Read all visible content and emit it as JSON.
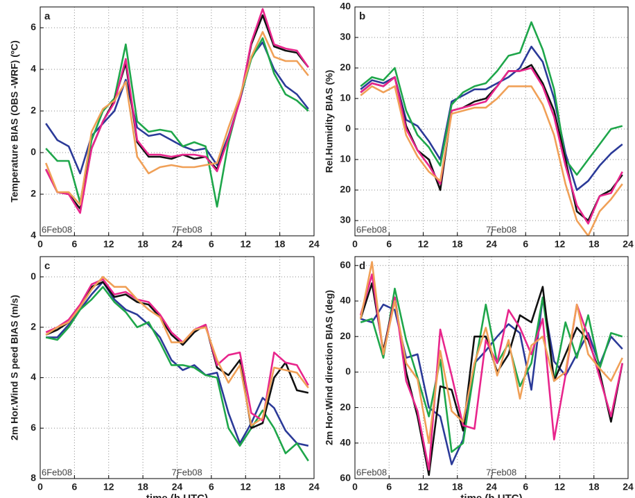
{
  "chart_data": [
    {
      "type": "line",
      "label": "a",
      "ylabel": "Temperature  BIAS  (OBS -WRF) (ºC)",
      "annotations": [
        "6Feb08",
        "7Feb08"
      ],
      "x": [
        1,
        3,
        5,
        7,
        9,
        11,
        13,
        15,
        17,
        19,
        21,
        23,
        25,
        27,
        29,
        31,
        33,
        35,
        37,
        39,
        41,
        43,
        45,
        47
      ],
      "xlim": [
        0,
        48
      ],
      "xticks": [
        0,
        6,
        12,
        18,
        24,
        {
          "value": 30,
          "label": "6"
        },
        {
          "value": 36,
          "label": "12"
        },
        {
          "value": 42,
          "label": "18"
        },
        {
          "value": 48,
          "label": "24"
        }
      ],
      "ylim": [
        -4,
        7
      ],
      "yticks": [
        {
          "value": -4,
          "label": "4"
        },
        {
          "value": -2,
          "label": "2"
        },
        0,
        2,
        4,
        6
      ],
      "grid": true,
      "series": [
        {
          "color": "#2b3a98",
          "values": [
            1.4,
            0.6,
            0.3,
            -1.0,
            0.8,
            1.4,
            2.0,
            3.5,
            1.2,
            0.8,
            0.9,
            0.6,
            0.3,
            0.1,
            0.2,
            -0.6,
            0.8,
            2.5,
            4.6,
            5.3,
            4.0,
            3.2,
            2.8,
            2.1
          ]
        },
        {
          "color": "#1ea64a",
          "values": [
            0.2,
            -0.4,
            -0.4,
            -2.4,
            0.6,
            2.0,
            2.6,
            5.2,
            1.5,
            1.0,
            1.1,
            1.0,
            0.3,
            0.5,
            0.3,
            -2.6,
            0.5,
            2.6,
            4.5,
            5.5,
            3.8,
            2.8,
            2.5,
            2.0
          ]
        },
        {
          "color": "#111111",
          "values": [
            -0.8,
            -1.9,
            -2.0,
            -2.7,
            0.2,
            1.5,
            2.5,
            4.3,
            0.5,
            -0.2,
            -0.2,
            -0.3,
            -0.1,
            -0.3,
            -0.2,
            -0.8,
            0.7,
            2.5,
            5.2,
            6.6,
            5.1,
            4.9,
            4.8,
            4.1
          ]
        },
        {
          "color": "#e8258c",
          "values": [
            -0.8,
            -1.9,
            -2.0,
            -2.9,
            0.2,
            1.5,
            2.4,
            4.5,
            0.6,
            -0.1,
            -0.1,
            -0.2,
            -0.1,
            -0.1,
            -0.2,
            -0.9,
            0.7,
            2.5,
            5.3,
            6.9,
            5.2,
            5.0,
            4.9,
            4.1
          ]
        },
        {
          "color": "#f0a057",
          "values": [
            -0.5,
            -1.9,
            -1.9,
            -2.5,
            1.0,
            2.1,
            2.5,
            3.4,
            -0.2,
            -1.0,
            -0.7,
            -0.6,
            -0.7,
            -0.7,
            -0.6,
            -0.5,
            1.2,
            2.7,
            4.6,
            5.8,
            4.6,
            4.4,
            4.4,
            3.7
          ]
        }
      ]
    },
    {
      "type": "line",
      "label": "b",
      "ylabel": "Rel.Humidity  BIAS   (%)",
      "annotations": [
        "6Feb08",
        "7Feb08"
      ],
      "x": [
        1,
        3,
        5,
        7,
        9,
        11,
        13,
        15,
        17,
        19,
        21,
        23,
        25,
        27,
        29,
        31,
        33,
        35,
        37,
        39,
        41,
        43,
        45,
        47
      ],
      "xlim": [
        0,
        48
      ],
      "xticks": [
        0,
        6,
        12,
        18,
        24,
        {
          "value": 30,
          "label": "6"
        },
        {
          "value": 36,
          "label": "12"
        },
        {
          "value": 42,
          "label": "18"
        },
        {
          "value": 48,
          "label": "24"
        }
      ],
      "ylim": [
        -35,
        40
      ],
      "yticks": [
        {
          "value": -30,
          "label": "30"
        },
        {
          "value": -20,
          "label": "20"
        },
        {
          "value": -10,
          "label": "10"
        },
        0,
        10,
        20,
        30,
        40
      ],
      "grid": true,
      "series": [
        {
          "color": "#2b3a98",
          "values": [
            13,
            16,
            15,
            17,
            3,
            1,
            -4,
            -10,
            9,
            11,
            13,
            13,
            15,
            17,
            20,
            27,
            22,
            10,
            -8,
            -20,
            -17,
            -12,
            -8,
            -5
          ]
        },
        {
          "color": "#1ea64a",
          "values": [
            14,
            17,
            16,
            20,
            6,
            -2,
            -6,
            -12,
            8,
            12,
            14,
            15,
            19,
            24,
            25,
            35,
            26,
            13,
            -10,
            -15,
            -10,
            -5,
            0,
            1
          ]
        },
        {
          "color": "#111111",
          "values": [
            12,
            15,
            14,
            17,
            1,
            -7,
            -10,
            -20,
            6,
            7,
            9,
            10,
            14,
            19,
            19,
            21,
            15,
            6,
            -10,
            -27,
            -30,
            -22,
            -20,
            -15
          ]
        },
        {
          "color": "#e8258c",
          "values": [
            12,
            15,
            14,
            17,
            0,
            -7,
            -12,
            -18,
            6,
            7,
            8,
            9,
            14,
            19,
            19,
            20,
            14,
            4,
            -12,
            -25,
            -31,
            -22,
            -21,
            -14
          ]
        },
        {
          "color": "#f0a057",
          "values": [
            11,
            14,
            12,
            14,
            -2,
            -9,
            -14,
            -17,
            5,
            6,
            7,
            7,
            10,
            14,
            14,
            14,
            8,
            -2,
            -18,
            -30,
            -35,
            -27,
            -23,
            -18
          ]
        }
      ]
    },
    {
      "type": "line",
      "label": "c",
      "ylabel": "2m  Hor.Wind S peed  BIAS   (m/s)",
      "xlabel": "time  (h  UTC)",
      "annotations": [
        "6Feb08",
        "7Feb08"
      ],
      "x": [
        1,
        3,
        5,
        7,
        9,
        11,
        13,
        15,
        17,
        19,
        21,
        23,
        25,
        27,
        29,
        31,
        33,
        35,
        37,
        39,
        41,
        43,
        45,
        47
      ],
      "xlim": [
        0,
        48
      ],
      "xticks": [
        0,
        6,
        12,
        18,
        24,
        {
          "value": 30,
          "label": "6"
        },
        {
          "value": 36,
          "label": "12"
        },
        {
          "value": 42,
          "label": "18"
        },
        {
          "value": 48,
          "label": "24"
        }
      ],
      "ylim": [
        -8,
        0.8
      ],
      "yticks": [
        {
          "value": -8,
          "label": "8"
        },
        {
          "value": -6,
          "label": "6"
        },
        {
          "value": -4,
          "label": "4"
        },
        {
          "value": -2,
          "label": "2"
        },
        0
      ],
      "grid": true,
      "series": [
        {
          "color": "#2b3a98",
          "values": [
            -2.4,
            -2.4,
            -1.9,
            -1.3,
            -0.7,
            -0.2,
            -0.9,
            -1.3,
            -1.5,
            -1.9,
            -2.4,
            -3.3,
            -3.7,
            -3.5,
            -3.9,
            -3.8,
            -5.4,
            -6.6,
            -5.8,
            -4.8,
            -5.2,
            -6.1,
            -6.6,
            -6.7
          ]
        },
        {
          "color": "#1ea64a",
          "values": [
            -2.4,
            -2.5,
            -2.0,
            -1.3,
            -0.9,
            -0.4,
            -1.0,
            -1.4,
            -2.0,
            -1.8,
            -2.6,
            -3.5,
            -3.5,
            -3.6,
            -3.9,
            -4.0,
            -6.0,
            -6.7,
            -6.0,
            -5.3,
            -6.0,
            -7.0,
            -6.6,
            -7.3
          ]
        },
        {
          "color": "#111111",
          "values": [
            -2.3,
            -2.1,
            -1.8,
            -1.2,
            -0.4,
            -0.2,
            -0.8,
            -0.7,
            -1.0,
            -1.1,
            -1.6,
            -2.3,
            -2.7,
            -2.2,
            -1.9,
            -3.6,
            -3.9,
            -3.3,
            -6.0,
            -5.8,
            -4.0,
            -3.4,
            -4.5,
            -4.6
          ]
        },
        {
          "color": "#e8258c",
          "values": [
            -2.2,
            -2.0,
            -1.7,
            -1.1,
            -0.3,
            -0.1,
            -0.7,
            -0.6,
            -0.9,
            -1.0,
            -1.5,
            -2.2,
            -2.6,
            -2.1,
            -1.9,
            -3.5,
            -3.1,
            -3.0,
            -5.4,
            -5.7,
            -3.0,
            -3.4,
            -3.5,
            -4.3
          ]
        },
        {
          "color": "#f0a057",
          "values": [
            -2.3,
            -2.0,
            -1.8,
            -1.2,
            -0.5,
            0,
            -0.4,
            -0.4,
            -0.9,
            -1.3,
            -1.6,
            -2.6,
            -2.6,
            -2.1,
            -2.0,
            -3.3,
            -4.2,
            -3.5,
            -5.9,
            -5.6,
            -3.6,
            -3.7,
            -3.8,
            -4.4
          ]
        }
      ]
    },
    {
      "type": "line",
      "label": "d",
      "ylabel": "2m  Hor.Wind  direction  BIAS   (deg)",
      "xlabel": "time  (h  UTC)",
      "annotations": [
        "6Feb08",
        "7Feb08"
      ],
      "x": [
        1,
        3,
        5,
        7,
        9,
        11,
        13,
        15,
        17,
        19,
        21,
        23,
        25,
        27,
        29,
        31,
        33,
        35,
        37,
        39,
        41,
        43,
        45,
        47
      ],
      "xlim": [
        0,
        48
      ],
      "xticks": [
        0,
        6,
        12,
        18,
        24,
        {
          "value": 30,
          "label": "6"
        },
        {
          "value": 36,
          "label": "12"
        },
        {
          "value": 42,
          "label": "18"
        },
        {
          "value": 48,
          "label": "24"
        }
      ],
      "ylim": [
        -60,
        65
      ],
      "yticks": [
        {
          "value": -60,
          "label": "60"
        },
        {
          "value": -40,
          "label": "40"
        },
        {
          "value": -20,
          "label": "20"
        },
        0,
        20,
        40,
        60
      ],
      "grid": true,
      "series": [
        {
          "color": "#2b3a98",
          "values": [
            30,
            28,
            38,
            35,
            8,
            10,
            -20,
            -25,
            -52,
            -38,
            5,
            12,
            20,
            27,
            22,
            -10,
            42,
            6,
            -2,
            10,
            22,
            4,
            20,
            13
          ]
        },
        {
          "color": "#1ea64a",
          "values": [
            28,
            30,
            8,
            47,
            18,
            -3,
            -25,
            7,
            -45,
            -40,
            2,
            38,
            5,
            16,
            -8,
            5,
            42,
            -5,
            28,
            8,
            32,
            2,
            22,
            20
          ]
        },
        {
          "color": "#111111",
          "values": [
            30,
            50,
            12,
            42,
            0,
            -25,
            -58,
            -8,
            -10,
            -33,
            20,
            20,
            0,
            10,
            32,
            28,
            48,
            -5,
            10,
            25,
            18,
            0,
            -28,
            5
          ]
        },
        {
          "color": "#e8258c",
          "values": [
            32,
            55,
            10,
            42,
            -5,
            -22,
            -55,
            24,
            -2,
            -30,
            -32,
            18,
            5,
            35,
            25,
            10,
            30,
            -38,
            -2,
            38,
            20,
            -3,
            -25,
            5
          ]
        },
        {
          "color": "#f0a057",
          "values": [
            30,
            62,
            10,
            40,
            5,
            -4,
            -40,
            12,
            -22,
            -28,
            5,
            25,
            -2,
            18,
            -15,
            15,
            20,
            -5,
            0,
            38,
            10,
            2,
            -5,
            8
          ]
        }
      ]
    }
  ]
}
